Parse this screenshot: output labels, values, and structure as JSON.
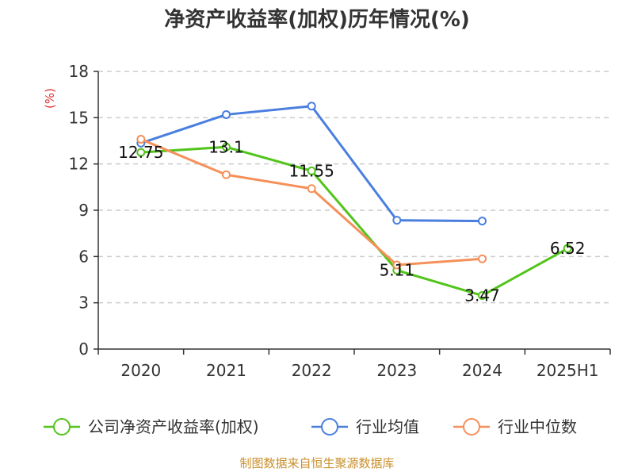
{
  "chart_data": {
    "type": "line",
    "title": "净资产收益率(加权)历年情况(%)",
    "ylabel": "(%)",
    "xlabel": "",
    "categories": [
      "2020",
      "2021",
      "2022",
      "2023",
      "2024",
      "2025H1"
    ],
    "ylim": [
      0,
      18
    ],
    "yticks": [
      0,
      3,
      6,
      9,
      12,
      15,
      18
    ],
    "grid": true,
    "legend_position": "bottom",
    "series": [
      {
        "name": "公司净资产收益率(加权)",
        "color": "#52c41a",
        "values": [
          12.75,
          13.1,
          11.55,
          5.11,
          3.47,
          6.52
        ],
        "labels": [
          "12.75",
          "13.1",
          "11.55",
          "5.11",
          "3.47",
          "6.52"
        ],
        "show_labels": true
      },
      {
        "name": "行业均值",
        "color": "#4a7fe0",
        "values": [
          13.35,
          15.2,
          15.75,
          8.35,
          8.3,
          null
        ],
        "show_labels": false
      },
      {
        "name": "行业中位数",
        "color": "#f5905a",
        "values": [
          13.6,
          11.3,
          10.4,
          5.45,
          5.85,
          null
        ],
        "show_labels": false
      }
    ]
  },
  "footer": {
    "source": "制图数据来自恒生聚源数据库"
  }
}
